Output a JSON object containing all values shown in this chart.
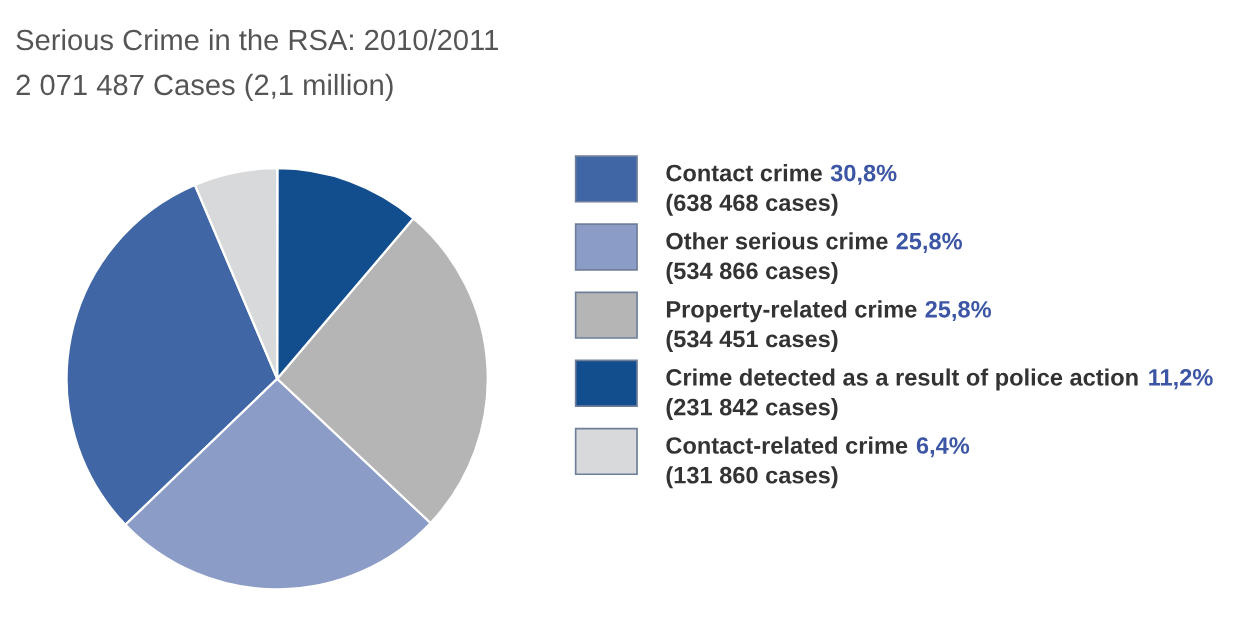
{
  "chart_data": {
    "type": "pie",
    "title": "Serious Crime in the RSA: 2010/2011",
    "subtitle": "2 071 487 Cases (2,1 million)",
    "categories": [
      "Contact crime",
      "Other serious crime",
      "Property-related crime",
      "Crime detected as a result of police action",
      "Contact-related crime"
    ],
    "values": [
      30.8,
      25.8,
      25.8,
      11.2,
      6.4
    ],
    "value_labels": [
      "30,8%",
      "25,8%",
      "25,8%",
      "11,2%",
      "6,4%"
    ],
    "colors": [
      "#4066a6",
      "#8b9cc6",
      "#b5b5b5",
      "#124d8e",
      "#d8d9da"
    ],
    "annotations": [
      "(638 468 cases)",
      "(534 866 cases)",
      "(534 451 cases)",
      "(231 842 cases)",
      "(131 860 cases)"
    ],
    "legend": "right"
  }
}
